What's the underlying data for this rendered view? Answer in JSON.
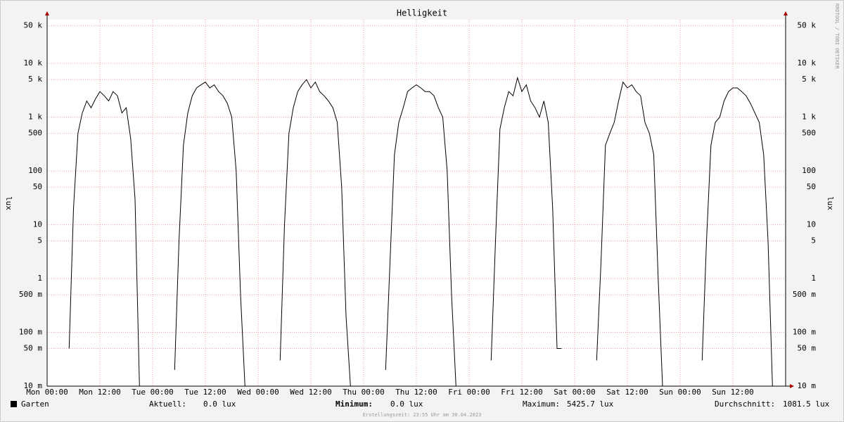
{
  "chart_data": {
    "type": "line",
    "title": "Helligkeit",
    "y_label": "lux",
    "side_text": "RRDTOOL / TOBI OETIKER",
    "log_y": true,
    "grid": true,
    "xlim": [
      0,
      168
    ],
    "ylim": [
      0.01,
      65000
    ],
    "xticks": [
      {
        "value": 0,
        "label": "Mon 00:00"
      },
      {
        "value": 12,
        "label": "Mon 12:00"
      },
      {
        "value": 24,
        "label": "Tue 00:00"
      },
      {
        "value": 36,
        "label": "Tue 12:00"
      },
      {
        "value": 48,
        "label": "Wed 00:00"
      },
      {
        "value": 60,
        "label": "Wed 12:00"
      },
      {
        "value": 72,
        "label": "Thu 00:00"
      },
      {
        "value": 84,
        "label": "Thu 12:00"
      },
      {
        "value": 96,
        "label": "Fri 00:00"
      },
      {
        "value": 108,
        "label": "Fri 12:00"
      },
      {
        "value": 120,
        "label": "Sat 00:00"
      },
      {
        "value": 132,
        "label": "Sat 12:00"
      },
      {
        "value": 144,
        "label": "Sun 00:00"
      },
      {
        "value": 156,
        "label": "Sun 12:00"
      }
    ],
    "yticks": [
      {
        "value": 0.01,
        "label": "10 m"
      },
      {
        "value": 0.05,
        "label": "50 m"
      },
      {
        "value": 0.1,
        "label": "100 m"
      },
      {
        "value": 0.5,
        "label": "500 m"
      },
      1,
      5,
      10,
      50,
      100,
      500,
      {
        "value": 1000,
        "label": "1 k"
      },
      {
        "value": 5000,
        "label": "5 k"
      },
      {
        "value": 10000,
        "label": "10 k"
      },
      {
        "value": 50000,
        "label": "50 k"
      }
    ],
    "series": [
      {
        "name": "Garten",
        "color": "#000000",
        "x": [
          5,
          6,
          7,
          8,
          9,
          10,
          11,
          12,
          13,
          14,
          15,
          16,
          17,
          18,
          19,
          20,
          21,
          23,
          29,
          30,
          31,
          32,
          33,
          34,
          35,
          36,
          37,
          38,
          39,
          40,
          41,
          42,
          43,
          44,
          45,
          47,
          53,
          54,
          55,
          56,
          57,
          58,
          59,
          60,
          61,
          62,
          63,
          64,
          65,
          66,
          67,
          68,
          69,
          71,
          77,
          78,
          79,
          80,
          81,
          82,
          83,
          84,
          85,
          86,
          87,
          88,
          89,
          90,
          91,
          92,
          93,
          95,
          101,
          102,
          103,
          104,
          105,
          106,
          107,
          108,
          109,
          110,
          111,
          112,
          113,
          114,
          115,
          116,
          117,
          119,
          125,
          126,
          127,
          128,
          129,
          130,
          131,
          132,
          133,
          134,
          135,
          136,
          137,
          138,
          139,
          140,
          141,
          143,
          149,
          150,
          151,
          152,
          153,
          154,
          155,
          156,
          157,
          158,
          159,
          160,
          161,
          162,
          163,
          164,
          165,
          167
        ],
        "values": [
          0.05,
          20,
          500,
          1200,
          2000,
          1500,
          2200,
          3000,
          2500,
          2000,
          3000,
          2500,
          1200,
          1500,
          400,
          30,
          0.01,
          null,
          0.02,
          5,
          300,
          1200,
          2500,
          3500,
          4000,
          4500,
          3500,
          4000,
          3000,
          2500,
          1800,
          1000,
          100,
          0.5,
          0.01,
          null,
          0.03,
          10,
          500,
          1500,
          3000,
          4000,
          5000,
          3500,
          4500,
          3000,
          2500,
          2000,
          1500,
          800,
          50,
          0.2,
          0.01,
          null,
          0.02,
          2,
          200,
          800,
          1500,
          3000,
          3500,
          4000,
          3500,
          3000,
          3000,
          2500,
          1500,
          1000,
          100,
          0.5,
          0.01,
          null,
          0.03,
          5,
          600,
          1500,
          3000,
          2500,
          5400,
          3000,
          4000,
          2000,
          1500,
          1000,
          2000,
          800,
          20,
          0.05,
          0.05,
          null,
          0.03,
          2,
          300,
          500,
          800,
          2000,
          4500,
          3500,
          4000,
          3000,
          2500,
          800,
          500,
          200,
          1,
          0.01,
          0.01,
          null,
          0.03,
          5,
          300,
          800,
          1000,
          2000,
          3000,
          3500,
          3500,
          3000,
          2500,
          1800,
          1200,
          800,
          200,
          5,
          0.01,
          null
        ]
      }
    ],
    "stats": [
      {
        "label": "Aktuell:",
        "value": "0.0 lux"
      },
      {
        "label": "Minimum:",
        "value": "0.0 lux"
      },
      {
        "label": "Maximum:",
        "value": "5425.7 lux"
      },
      {
        "label": "Durchschnitt:",
        "value": "1081.5 lux"
      }
    ],
    "footer": "Erstellungszeit: 23:55 Uhr am 30.04.2023"
  }
}
